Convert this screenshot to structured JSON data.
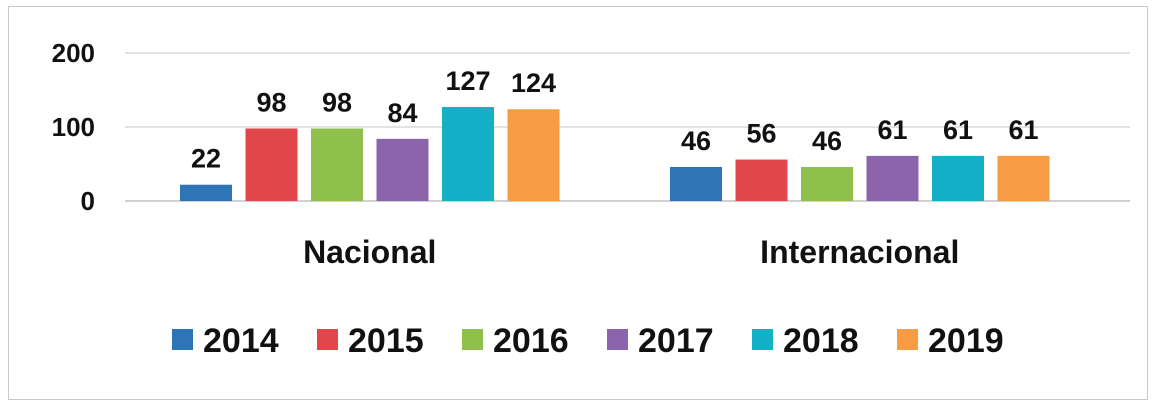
{
  "chart_data": {
    "type": "bar",
    "categories": [
      "Nacional",
      "Internacional"
    ],
    "series": [
      {
        "name": "2014",
        "values": [
          22,
          46
        ],
        "color": "#2e75b6"
      },
      {
        "name": "2015",
        "values": [
          98,
          56
        ],
        "color": "#e0464a"
      },
      {
        "name": "2016",
        "values": [
          98,
          46
        ],
        "color": "#8fc04c"
      },
      {
        "name": "2017",
        "values": [
          84,
          61
        ],
        "color": "#8b64ab"
      },
      {
        "name": "2018",
        "values": [
          127,
          61
        ],
        "color": "#14b0c8"
      },
      {
        "name": "2019",
        "values": [
          124,
          61
        ],
        "color": "#f79c43"
      }
    ],
    "ylim": [
      0,
      200
    ],
    "yticks": [
      "0",
      "100",
      "200"
    ],
    "grid": true,
    "legend_position": "bottom"
  }
}
